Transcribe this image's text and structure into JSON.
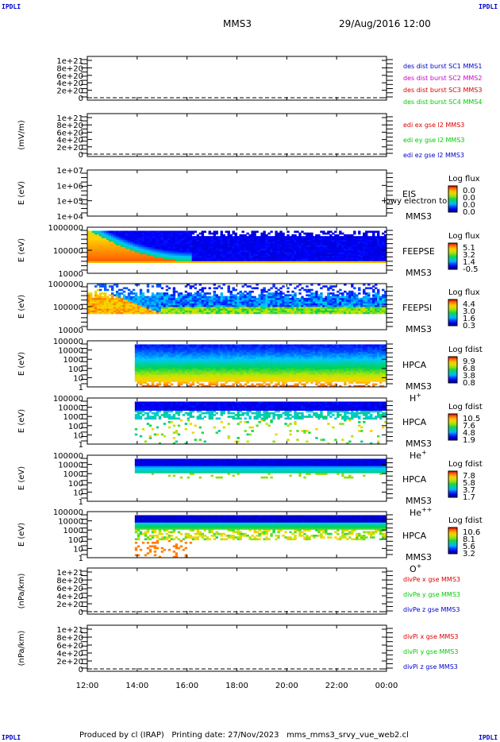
{
  "header": {
    "corner_label": "IPDLI",
    "spacecraft": "MMS3",
    "datetime": "29/Aug/2016 12:00"
  },
  "footer": {
    "produced_by": "Produced by cl (IRAP)",
    "printing_date": "Printing date: 27/Nov/2023",
    "script": "mms_mms3_srvy_vue_web2.cl"
  },
  "colors": {
    "blue": "#0000cc",
    "magenta": "#cc00cc",
    "red": "#dd0000",
    "green": "#00cc00"
  },
  "chart_data": {
    "type": "line",
    "x_ticks": [
      "12:00",
      "14:00",
      "16:00",
      "18:00",
      "20:00",
      "22:00",
      "00:00"
    ],
    "x_range": [
      "12:00",
      "00:00"
    ],
    "grid": false,
    "panels": [
      {
        "kind": "line",
        "ylabel": "",
        "yticks": [
          "1e+21",
          "8e+20",
          "6e+20",
          "4e+20",
          "2e+20",
          "0"
        ],
        "zero_dashed": true,
        "legend": [
          {
            "text": "des dist burst SC1 MMS1",
            "color": "#0000cc"
          },
          {
            "text": "des dist burst SC2 MMS2",
            "color": "#cc00cc"
          },
          {
            "text": "des dist burst SC3 MMS3",
            "color": "#dd0000"
          },
          {
            "text": "des dist burst SC4 MMS4",
            "color": "#00cc00"
          }
        ]
      },
      {
        "kind": "line",
        "ylabel": "(mV/m)",
        "yticks": [
          "1e+21",
          "8e+20",
          "6e+20",
          "4e+20",
          "2e+20",
          "0"
        ],
        "zero_dashed": true,
        "legend": [
          {
            "text": "edi ex gse l2 MMS3",
            "color": "#dd0000"
          },
          {
            "text": "edi ey gse l2 MMS3",
            "color": "#00cc00"
          },
          {
            "text": "edi ez gse l2 MMS3",
            "color": "#0000cc"
          }
        ]
      },
      {
        "kind": "spectrogram",
        "ylabel": "E (eV)",
        "yticks": [
          "1e+07",
          "1e+06",
          "1e+05",
          "1e+04"
        ],
        "instrument": [
          "EIS",
          "MMS3"
        ],
        "overlap_text": "lowy electron to",
        "colorbar": {
          "title": "Log flux",
          "ticks": [
            "0.0",
            "0.0",
            "0.0",
            "0.0"
          ]
        },
        "pattern": "empty"
      },
      {
        "kind": "spectrogram",
        "ylabel": "E (eV)",
        "yticks": [
          "1000000",
          "100000",
          "10000"
        ],
        "instrument": [
          "FEEPSE",
          "MMS3"
        ],
        "colorbar": {
          "title": "Log flux",
          "ticks": [
            "5.1",
            "3.2",
            "1.4",
            "-0.5"
          ]
        },
        "pattern": "feepse"
      },
      {
        "kind": "spectrogram",
        "ylabel": "E (eV)",
        "yticks": [
          "1000000",
          "100000",
          "10000"
        ],
        "instrument": [
          "FEEPSI",
          "MMS3"
        ],
        "colorbar": {
          "title": "Log flux",
          "ticks": [
            "4.4",
            "3.0",
            "1.6",
            "0.3"
          ]
        },
        "pattern": "feepsi"
      },
      {
        "kind": "spectrogram",
        "ylabel": "E (eV)",
        "yticks": [
          "100000",
          "10000",
          "1000",
          "100",
          "10",
          "1"
        ],
        "instrument": [
          "HPCA",
          "MMS3"
        ],
        "species": "H",
        "species_sup": "+",
        "colorbar": {
          "title": "Log fdist",
          "ticks": [
            "9.9",
            "6.8",
            "3.8",
            "0.8"
          ]
        },
        "pattern": "hpca_h"
      },
      {
        "kind": "spectrogram",
        "ylabel": "E (eV)",
        "yticks": [
          "100000",
          "10000",
          "1000",
          "100",
          "10",
          "1"
        ],
        "instrument": [
          "HPCA",
          "MMS3"
        ],
        "species": "He",
        "species_sup": "+",
        "colorbar": {
          "title": "Log fdist",
          "ticks": [
            "10.5",
            "7.6",
            "4.8",
            "1.9"
          ]
        },
        "pattern": "hpca_he"
      },
      {
        "kind": "spectrogram",
        "ylabel": "E (eV)",
        "yticks": [
          "100000",
          "10000",
          "1000",
          "100",
          "10",
          "1"
        ],
        "instrument": [
          "HPCA",
          "MMS3"
        ],
        "species": "He",
        "species_sup": "++",
        "colorbar": {
          "title": "Log fdist",
          "ticks": [
            "7.8",
            "5.8",
            "3.7",
            "1.7"
          ]
        },
        "pattern": "hpca_hepp"
      },
      {
        "kind": "spectrogram",
        "ylabel": "E (eV)",
        "yticks": [
          "100000",
          "10000",
          "1000",
          "100",
          "10",
          "1"
        ],
        "instrument": [
          "HPCA",
          "MMS3"
        ],
        "species": "O",
        "species_sup": "+",
        "colorbar": {
          "title": "Log fdist",
          "ticks": [
            "10.6",
            "8.1",
            "5.6",
            "3.2"
          ]
        },
        "pattern": "hpca_o"
      },
      {
        "kind": "line",
        "ylabel": "(nPa/km)",
        "yticks": [
          "1e+21",
          "8e+20",
          "6e+20",
          "4e+20",
          "2e+20",
          "0"
        ],
        "zero_dashed": true,
        "legend": [
          {
            "text": "divPe x gse MMS3",
            "color": "#dd0000"
          },
          {
            "text": "divPe y gse MMS3",
            "color": "#00cc00"
          },
          {
            "text": "divPe z gse MMS3",
            "color": "#0000cc"
          }
        ]
      },
      {
        "kind": "line",
        "ylabel": "(nPa/km)",
        "yticks": [
          "1e+21",
          "8e+20",
          "6e+20",
          "4e+20",
          "2e+20",
          "0"
        ],
        "zero_dashed": true,
        "legend": [
          {
            "text": "divPi x gse MMS3",
            "color": "#dd0000"
          },
          {
            "text": "divPi y gse MMS3",
            "color": "#00cc00"
          },
          {
            "text": "divPi z gse MMS3",
            "color": "#0000cc"
          }
        ]
      }
    ]
  }
}
